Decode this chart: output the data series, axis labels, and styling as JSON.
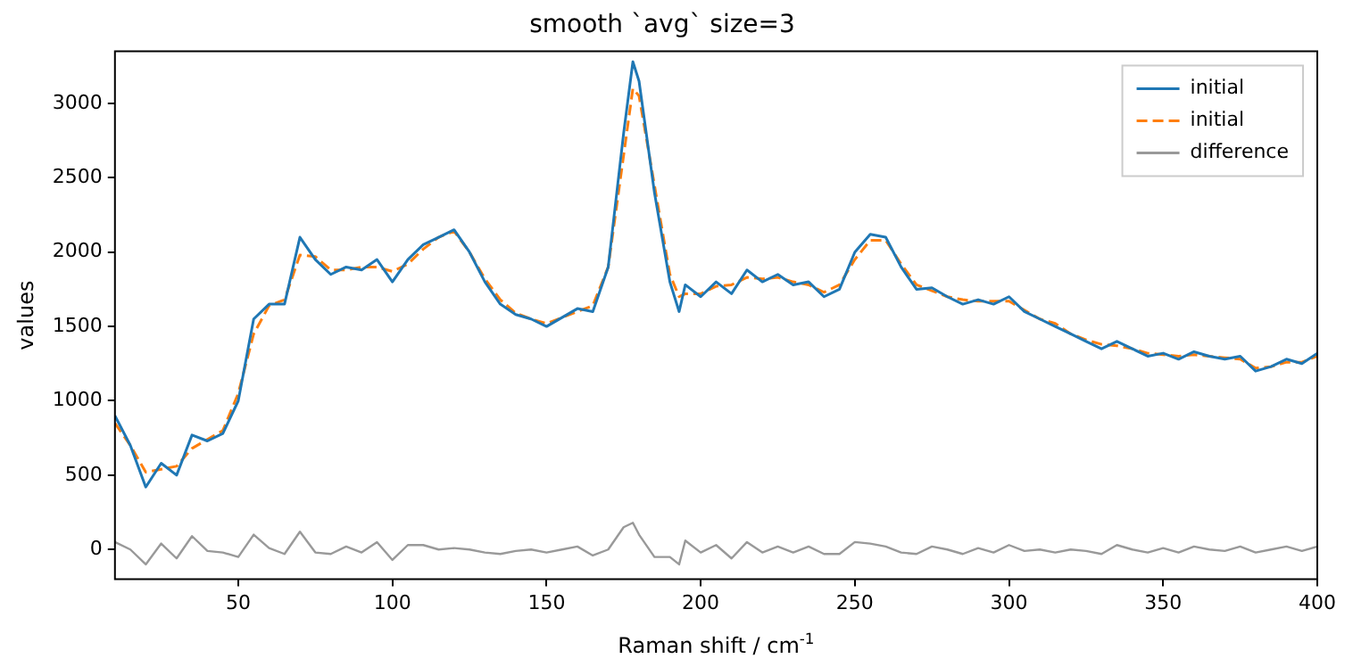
{
  "chart_data": {
    "type": "line",
    "title": "smooth `avg` size=3",
    "xlabel": "Raman shift / cm$^{-1}$",
    "ylabel": "values",
    "x": [
      10,
      15,
      20,
      25,
      30,
      35,
      40,
      45,
      50,
      55,
      60,
      65,
      70,
      75,
      80,
      85,
      90,
      95,
      100,
      105,
      110,
      115,
      120,
      125,
      130,
      135,
      140,
      145,
      150,
      155,
      160,
      165,
      170,
      175,
      178,
      180,
      185,
      190,
      193,
      195,
      200,
      205,
      210,
      215,
      220,
      225,
      230,
      235,
      240,
      245,
      250,
      255,
      260,
      265,
      270,
      275,
      280,
      285,
      290,
      295,
      300,
      305,
      310,
      315,
      320,
      325,
      330,
      335,
      340,
      345,
      350,
      355,
      360,
      365,
      370,
      375,
      380,
      385,
      390,
      395,
      400
    ],
    "series": [
      {
        "name": "initial",
        "color": "#1f77b4",
        "line_style": "solid",
        "values": [
          900,
          700,
          420,
          580,
          500,
          770,
          730,
          780,
          1000,
          1550,
          1650,
          1650,
          2100,
          1950,
          1850,
          1900,
          1880,
          1950,
          1800,
          1950,
          2050,
          2100,
          2150,
          2000,
          1800,
          1650,
          1580,
          1550,
          1500,
          1560,
          1620,
          1600,
          1900,
          2800,
          3280,
          3150,
          2400,
          1800,
          1600,
          1780,
          1700,
          1800,
          1720,
          1880,
          1800,
          1850,
          1780,
          1800,
          1700,
          1750,
          2000,
          2120,
          2100,
          1900,
          1750,
          1760,
          1700,
          1650,
          1680,
          1650,
          1700,
          1600,
          1550,
          1500,
          1450,
          1400,
          1350,
          1400,
          1350,
          1300,
          1320,
          1280,
          1330,
          1300,
          1280,
          1300,
          1200,
          1230,
          1280,
          1250,
          1320
        ]
      },
      {
        "name": "initial",
        "color": "#ff7f0e",
        "line_style": "dashed",
        "values": [
          850,
          700,
          520,
          540,
          560,
          680,
          740,
          800,
          1050,
          1450,
          1640,
          1680,
          1980,
          1970,
          1880,
          1880,
          1900,
          1900,
          1870,
          1920,
          2020,
          2100,
          2140,
          2000,
          1820,
          1680,
          1590,
          1550,
          1520,
          1560,
          1600,
          1640,
          1900,
          2650,
          3100,
          3050,
          2450,
          1850,
          1700,
          1720,
          1720,
          1770,
          1780,
          1830,
          1820,
          1830,
          1800,
          1780,
          1730,
          1780,
          1950,
          2080,
          2080,
          1920,
          1780,
          1740,
          1700,
          1680,
          1670,
          1670,
          1670,
          1610,
          1550,
          1520,
          1450,
          1410,
          1380,
          1370,
          1350,
          1320,
          1310,
          1300,
          1310,
          1300,
          1290,
          1280,
          1220,
          1230,
          1260,
          1260,
          1300
        ]
      },
      {
        "name": "difference",
        "color": "#999999",
        "line_style": "solid",
        "values": [
          50,
          0,
          -100,
          40,
          -60,
          90,
          -10,
          -20,
          -50,
          100,
          10,
          -30,
          120,
          -20,
          -30,
          20,
          -20,
          50,
          -70,
          30,
          30,
          0,
          10,
          0,
          -20,
          -30,
          -10,
          0,
          -20,
          0,
          20,
          -40,
          0,
          150,
          180,
          100,
          -50,
          -50,
          -100,
          60,
          -20,
          30,
          -60,
          50,
          -20,
          20,
          -20,
          20,
          -30,
          -30,
          50,
          40,
          20,
          -20,
          -30,
          20,
          0,
          -30,
          10,
          -20,
          30,
          -10,
          0,
          -20,
          0,
          -10,
          -30,
          30,
          0,
          -20,
          10,
          -20,
          20,
          0,
          -10,
          20,
          -20,
          0,
          20,
          -10,
          20
        ]
      }
    ],
    "xlim": [
      10,
      400
    ],
    "xticks": [
      50,
      100,
      150,
      200,
      250,
      300,
      350,
      400
    ],
    "ylim": [
      -200,
      3350
    ],
    "yticks": [
      0,
      500,
      1000,
      1500,
      2000,
      2500,
      3000
    ],
    "grid": false,
    "legend": "top right",
    "marker": "none"
  }
}
